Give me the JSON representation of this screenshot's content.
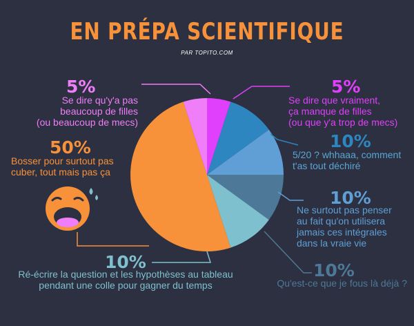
{
  "title": "EN PRÉPA SCIENTIFIQUE",
  "subtitle": "PAR TOPITO.COM",
  "chart_data": {
    "type": "pie",
    "slices": [
      {
        "value": 5,
        "percent_label": "5%",
        "label": "Se dire que vraiment, ça manque de filles (ou que y'a trop de mecs)",
        "color": "#e040fb"
      },
      {
        "value": 10,
        "percent_label": "10%",
        "label": "5/20 ? whhaaa, comment t'as tout déchiré",
        "color": "#2e86c1"
      },
      {
        "value": 10,
        "percent_label": "10%",
        "label": "Ne surtout pas penser au fait qu'on utilisera jamais ces intégrales dans la vraie vie",
        "color": "#5f9fd6"
      },
      {
        "value": 10,
        "percent_label": "10%",
        "label": "Qu'est-ce que je fous là déjà ?",
        "color": "#4e7898"
      },
      {
        "value": 10,
        "percent_label": "10%",
        "label": "Ré-écrire la question et les hypothèses au tableau pendant une colle pour gagner du temps",
        "color": "#7fc0cf"
      },
      {
        "value": 50,
        "percent_label": "50%",
        "label": "Bosser pour surtout pas cuber, tout mais pas ça",
        "color": "#f7923a"
      },
      {
        "value": 5,
        "percent_label": "5%",
        "label": "Se dire qu'y'a pas beaucoup de filles (ou beaucoup de mecs)",
        "color": "#f07ef8"
      }
    ]
  },
  "labels": {
    "top_left": {
      "pct": "5%",
      "lines": [
        "Se dire qu'y'a pas",
        "beaucoup de filles",
        "(ou beaucoup de mecs)"
      ]
    },
    "top_right": {
      "pct": "5%",
      "lines": [
        "Se dire que vraiment,",
        "ça manque de filles",
        "(ou que y'a trop de mecs)"
      ]
    },
    "right_1": {
      "pct": "10%",
      "lines": [
        "5/20 ? whhaaa, comment",
        "t'as tout déchiré"
      ]
    },
    "right_2": {
      "pct": "10%",
      "lines": [
        "Ne surtout pas penser",
        "au fait qu'on utilisera",
        "jamais ces intégrales",
        "dans la vraie vie"
      ]
    },
    "right_3": {
      "pct": "10%",
      "lines": [
        "Qu'est-ce que je fous là déjà ?"
      ]
    },
    "bottom": {
      "pct": "10%",
      "lines": [
        "Ré-écrire la question et les hypothèses au tableau",
        "pendant une colle pour gagner du temps"
      ]
    },
    "left": {
      "pct": "50%",
      "lines": [
        "Bosser pour surtout pas",
        "cuber, tout mais pas ça"
      ]
    }
  },
  "colors": {
    "background": "#2c3040",
    "title": "#f7923a",
    "pink_light": "#f07ef8",
    "pink": "#e040fb",
    "blue_label": "#5aa6d6",
    "orange": "#f7923a"
  }
}
